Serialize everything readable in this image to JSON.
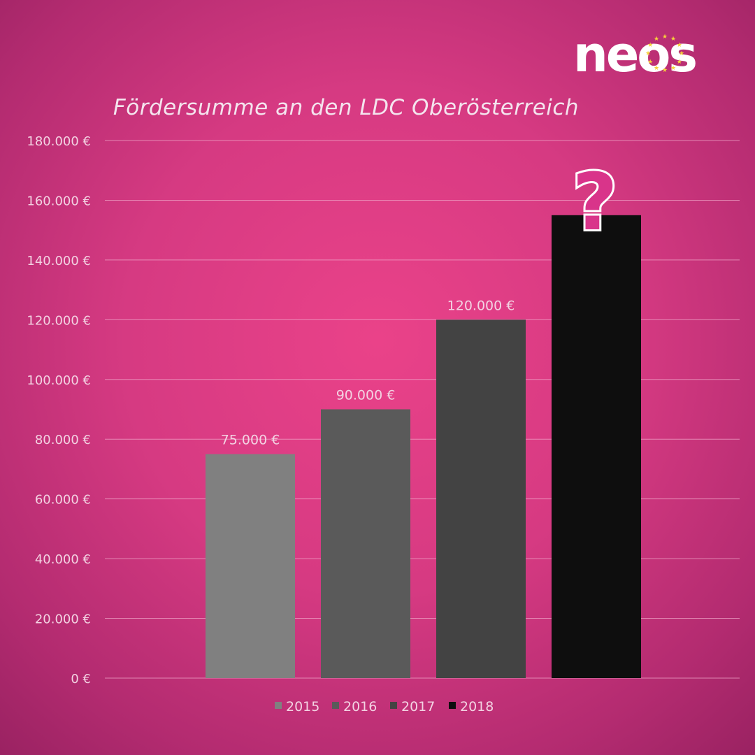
{
  "brand": {
    "name": "neos"
  },
  "chart_data": {
    "type": "bar",
    "title": "Fördersumme an den LDC Oberösterreich",
    "categories": [
      "2015",
      "2016",
      "2017",
      "2018"
    ],
    "values": [
      75000,
      90000,
      120000,
      155000
    ],
    "data_labels": [
      "75.000 €",
      "90.000 €",
      "120.000 €",
      ""
    ],
    "annotation": "?",
    "colors": [
      "#808080",
      "#5a5a5a",
      "#434343",
      "#0e0e0e"
    ],
    "ylim": [
      0,
      180000
    ],
    "yticks": [
      0,
      20000,
      40000,
      60000,
      80000,
      100000,
      120000,
      140000,
      160000,
      180000
    ],
    "ytick_labels": [
      "0 €",
      "20.000 €",
      "40.000 €",
      "60.000 €",
      "80.000 €",
      "100.000 €",
      "120.000 €",
      "140.000 €",
      "160.000 €",
      "180.000 €"
    ],
    "legend": [
      "2015",
      "2016",
      "2017",
      "2018"
    ],
    "legend_position": "bottom",
    "grid": true
  }
}
